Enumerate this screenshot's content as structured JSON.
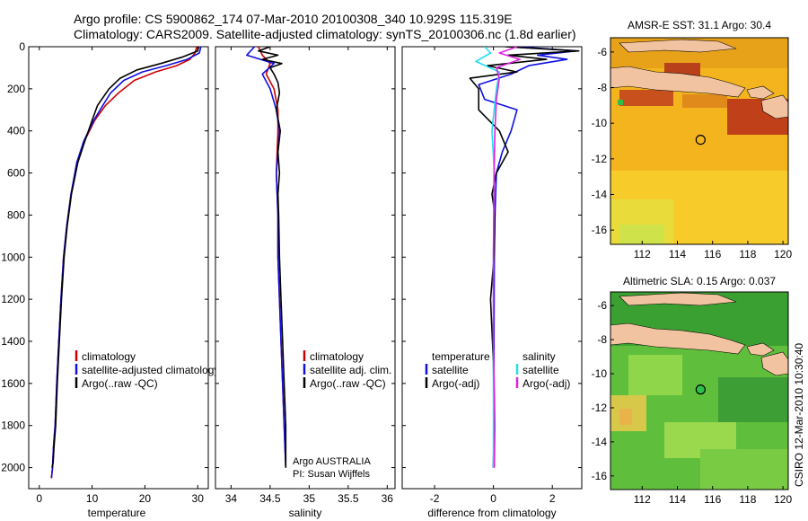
{
  "header": {
    "line1": "Argo profile: CS 5900862_174 07-Mar-2010 20100308_340 10.929S 115.319E",
    "line2": "Climatology: CARS2009. Satellite-adjusted climatology: synTS_20100306.nc (1.8d earlier)"
  },
  "side_label": "CSIRO 12-Mar-2010 10:30:40",
  "colors": {
    "red": "#d00000",
    "blue": "#1010e0",
    "black": "#000000",
    "cyan": "#20e0f0",
    "magenta": "#e020e0"
  },
  "chart_data": [
    {
      "type": "line",
      "name": "temperature-profile",
      "xlabel": "temperature",
      "ylabel": "",
      "xlim": [
        -2,
        32
      ],
      "ylim": [
        2100,
        0
      ],
      "xticks": [
        0,
        10,
        20,
        30
      ],
      "yticks": [
        0,
        200,
        400,
        600,
        800,
        1000,
        1200,
        1400,
        1600,
        1800,
        2000
      ],
      "legend": {
        "position": "lower-right",
        "entries": [
          "climatology",
          "satellite-adjusted climatology",
          "Argo(..raw -QC)"
        ]
      },
      "series": [
        {
          "name": "climatology",
          "color": "red",
          "x": [
            29.8,
            29.5,
            28.5,
            26,
            22,
            18,
            15,
            12.5,
            10.5,
            8.5,
            7.2,
            6,
            5.2,
            4.6,
            4.1,
            3.7,
            3.3,
            3,
            2.7,
            2.5,
            2.3
          ],
          "depth": [
            0,
            30,
            60,
            90,
            120,
            160,
            220,
            280,
            350,
            450,
            550,
            700,
            850,
            1000,
            1200,
            1400,
            1600,
            1800,
            1900,
            2000,
            2050
          ]
        },
        {
          "name": "satellite-adjusted climatology",
          "color": "blue",
          "x": [
            30.6,
            30.3,
            28,
            24,
            19.5,
            16,
            13.5,
            12,
            10.3,
            8.4,
            7.1,
            6,
            5.2,
            4.6,
            4.1,
            3.7,
            3.3,
            3,
            2.7,
            2.5,
            2.3
          ],
          "depth": [
            0,
            30,
            60,
            90,
            120,
            160,
            220,
            280,
            350,
            450,
            550,
            700,
            850,
            1000,
            1200,
            1400,
            1600,
            1800,
            1900,
            2000,
            2050
          ]
        },
        {
          "name": "Argo(..raw -QC)",
          "color": "black",
          "x": [
            30.2,
            30,
            27,
            23,
            18.5,
            15.3,
            13.2,
            11,
            10,
            8.6,
            7.3,
            6.1,
            5.3,
            4.7,
            4.2,
            3.8,
            3.4,
            3.1,
            2.8,
            2.6,
            2.4
          ],
          "depth": [
            0,
            20,
            50,
            80,
            110,
            150,
            200,
            280,
            350,
            450,
            550,
            700,
            850,
            1000,
            1200,
            1400,
            1600,
            1800,
            1900,
            1980,
            2000
          ]
        }
      ]
    },
    {
      "type": "line",
      "name": "salinity-profile",
      "xlabel": "salinity",
      "ylabel": "",
      "xlim": [
        33.8,
        36.1
      ],
      "ylim": [
        2100,
        0
      ],
      "xticks": [
        34,
        34.5,
        35,
        35.5,
        36
      ],
      "yticks": [
        0,
        200,
        400,
        600,
        800,
        1000,
        1200,
        1400,
        1600,
        1800,
        2000
      ],
      "legend": {
        "position": "lower-right",
        "entries": [
          "climatology",
          "satellite adj. clim.",
          "Argo(..raw -QC)"
        ]
      },
      "annotations": [
        "Argo AUSTRALIA",
        "PI: Susan Wijffels"
      ],
      "series": [
        {
          "name": "climatology",
          "color": "red",
          "x": [
            34.35,
            34.4,
            34.5,
            34.45,
            34.55,
            34.6,
            34.6,
            34.58,
            34.6,
            34.6,
            34.62,
            34.64,
            34.66,
            34.68,
            34.7
          ],
          "depth": [
            0,
            40,
            80,
            130,
            200,
            300,
            400,
            600,
            800,
            1000,
            1200,
            1400,
            1600,
            1800,
            2000
          ]
        },
        {
          "name": "satellite adj. clim.",
          "color": "blue",
          "x": [
            34.3,
            34.2,
            34.55,
            34.4,
            34.5,
            34.58,
            34.62,
            34.58,
            34.6,
            34.6,
            34.62,
            34.64,
            34.66,
            34.68,
            34.7
          ],
          "depth": [
            0,
            40,
            80,
            130,
            200,
            300,
            400,
            600,
            800,
            1000,
            1200,
            1400,
            1600,
            1800,
            2000
          ]
        },
        {
          "name": "Argo(..raw -QC)",
          "color": "black",
          "x": [
            34.5,
            34.35,
            34.6,
            34.4,
            34.65,
            34.5,
            34.55,
            34.6,
            34.62,
            34.58,
            34.63,
            34.6,
            34.62,
            34.6,
            34.61,
            34.62,
            34.64,
            34.66,
            34.68,
            34.7,
            34.7
          ],
          "depth": [
            0,
            20,
            40,
            60,
            80,
            100,
            130,
            170,
            220,
            300,
            400,
            500,
            600,
            700,
            800,
            1000,
            1200,
            1400,
            1600,
            1800,
            2000
          ]
        }
      ]
    },
    {
      "type": "line",
      "name": "difference-profile",
      "xlabel": "difference from climatology",
      "ylabel": "",
      "xlim": [
        -3.1,
        3.0
      ],
      "ylim": [
        2100,
        0
      ],
      "xticks": [
        -2,
        0,
        2
      ],
      "yticks": [
        0,
        200,
        400,
        600,
        800,
        1000,
        1200,
        1400,
        1600,
        1800,
        2000
      ],
      "legend": {
        "position": "lower-middle",
        "headers": [
          "temperature",
          "salinity"
        ],
        "entries": [
          "satellite",
          "Argo(-adj)",
          "satellite",
          "Argo(-adj)"
        ]
      },
      "series": [
        {
          "name": "temperature satellite",
          "color": "blue",
          "x": [
            0.8,
            2.8,
            1.5,
            2.5,
            1.2,
            0.6,
            -0.5,
            -0.3,
            0.8,
            0.6,
            0.3,
            0.1,
            0.05,
            0.03,
            0.02,
            0.01,
            0
          ],
          "depth": [
            0,
            20,
            40,
            60,
            90,
            130,
            180,
            250,
            300,
            400,
            500,
            600,
            800,
            1000,
            1400,
            1800,
            2000
          ]
        },
        {
          "name": "temperature Argo(-adj)",
          "color": "black",
          "x": [
            0.4,
            2.9,
            0.5,
            1.8,
            -0.2,
            0.8,
            -0.8,
            -0.5,
            -0.5,
            0.2,
            0.5,
            0.1,
            -0.05,
            0.05,
            0.02,
            -0.1,
            0,
            0.02,
            0
          ],
          "depth": [
            0,
            20,
            40,
            60,
            90,
            120,
            150,
            200,
            300,
            400,
            500,
            600,
            700,
            800,
            1000,
            1200,
            1500,
            1800,
            2000
          ]
        },
        {
          "name": "salinity satellite",
          "color": "cyan",
          "x": [
            -0.3,
            -0.1,
            -0.6,
            0.2,
            0.1,
            -0.05,
            0.03,
            0.0,
            0.0,
            0.0
          ],
          "depth": [
            0,
            30,
            70,
            120,
            200,
            400,
            600,
            1000,
            1500,
            2000
          ]
        },
        {
          "name": "salinity Argo(-adj)",
          "color": "magenta",
          "x": [
            0.8,
            0.2,
            0.9,
            0.1,
            0.2,
            0.1,
            0.05,
            0.02,
            0.0,
            0.0,
            0.05,
            0.03
          ],
          "depth": [
            0,
            30,
            60,
            100,
            150,
            250,
            400,
            600,
            1000,
            1400,
            1800,
            2000
          ]
        }
      ]
    },
    {
      "type": "heatmap",
      "name": "sst-map",
      "title": "AMSR-E SST: 31.1 Argo: 30.4",
      "xlim": [
        110.2,
        120.3
      ],
      "ylim": [
        -16.8,
        -5.2
      ],
      "xticks": [
        112,
        114,
        116,
        118,
        120
      ],
      "yticks": [
        -6,
        -8,
        -10,
        -12,
        -14,
        -16
      ],
      "xtick_labels": [
        "112",
        "114",
        "116",
        "118",
        "120"
      ],
      "ytick_labels": [
        "-6",
        "-8",
        "-10",
        "-12",
        "-14",
        "-16"
      ],
      "float_marker": {
        "lon": 115.319,
        "lat": -10.929
      }
    },
    {
      "type": "heatmap",
      "name": "sla-map",
      "title": "Altimetric SLA: 0.15 Argo: 0.037",
      "xlim": [
        110.2,
        120.3
      ],
      "ylim": [
        -16.8,
        -5.2
      ],
      "xticks": [
        112,
        114,
        116,
        118,
        120
      ],
      "yticks": [
        -6,
        -8,
        -10,
        -12,
        -14,
        -16
      ],
      "xtick_labels": [
        "112",
        "114",
        "116",
        "118",
        "120"
      ],
      "ytick_labels": [
        "-6",
        "-8",
        "-10",
        "-12",
        "-14",
        "-16"
      ],
      "float_marker": {
        "lon": 115.319,
        "lat": -10.929
      }
    }
  ]
}
